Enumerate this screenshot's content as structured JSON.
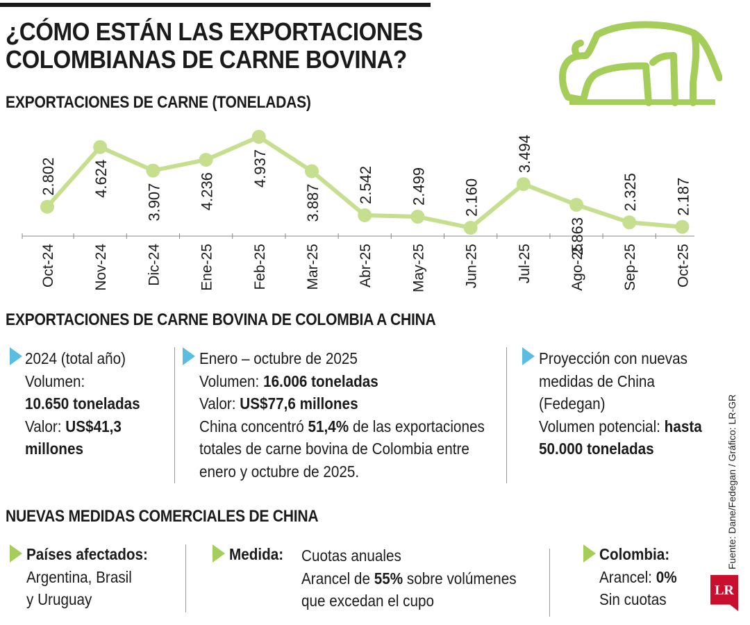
{
  "header": {
    "title_line1": "¿CÓMO ESTÁN LAS EXPORTACIONES",
    "title_line2": "COLOMBIANAS DE CARNE BOVINA?"
  },
  "colors": {
    "accent_green": "#a4cd5a",
    "accent_blue": "#5bbde0",
    "brand_red": "#c8102e"
  },
  "icons": {
    "cow": "cow-icon",
    "logo": "lr-logo"
  },
  "chart_data": {
    "type": "line",
    "title": "EXPORTACIONES DE CARNE (TONELADAS)",
    "categories": [
      "Oct-24",
      "Nov-24",
      "Dic-24",
      "Ene-25",
      "Feb-25",
      "Mar-25",
      "Abr-25",
      "May-25",
      "Jun-25",
      "Jul-25",
      "Ago-25",
      "Sep-25",
      "Oct-25"
    ],
    "values": [
      2802,
      4624,
      3907,
      4236,
      4937,
      3887,
      2542,
      2499,
      2160,
      3494,
      2863,
      2325,
      2187
    ],
    "labels": [
      "2.802",
      "4.624",
      "3.907",
      "4.236",
      "4.937",
      "3.887",
      "2.542",
      "2.499",
      "2.160",
      "3.494",
      "2.863",
      "2.325",
      "2.187"
    ],
    "ylim": [
      2000,
      5200
    ],
    "xlabel": "",
    "ylabel": "",
    "grid": false
  },
  "china_exports": {
    "title": "EXPORTACIONES DE CARNE BOVINA DE COLOMBIA A CHINA",
    "col1": {
      "heading": "2024 (total año)",
      "volume_label": "Volumen:",
      "volume_value": "10.650 toneladas",
      "value_label": "Valor:",
      "value_value_a": "US$41,3",
      "value_value_b": "millones"
    },
    "col2": {
      "heading": "Enero – octubre de 2025",
      "volume_label": "Volumen:",
      "volume_value": "16.006 toneladas",
      "value_label": "Valor:",
      "value_value": "US$77,6 millones",
      "share_pre": "China concentró",
      "share_value": "51,4%",
      "share_post": "de las exportaciones",
      "share_line2": "totales de carne bovina de Colombia entre",
      "share_line3": "enero y octubre de 2025."
    },
    "col3": {
      "line1": "Proyección con nuevas",
      "line2": "medidas de China",
      "line3": "(Fedegan)",
      "volume_label": "Volumen potencial:",
      "volume_pre": "hasta",
      "volume_value": "50.000 toneladas"
    }
  },
  "measures": {
    "title": "NUEVAS MEDIDAS COMERCIALES DE CHINA",
    "col1": {
      "heading": "Países afectados:",
      "line1": "Argentina, Brasil",
      "line2": "y Uruguay"
    },
    "col2": {
      "heading": "Medida:",
      "line1": "Cuotas anuales",
      "line2_pre": "Arancel de",
      "line2_value": "55%",
      "line2_post": "sobre volúmenes",
      "line3": "que excedan el cupo"
    },
    "col3": {
      "heading": "Colombia:",
      "tariff_label": "Arancel:",
      "tariff_value": "0%",
      "line2": "Sin cuotas"
    }
  },
  "footer": {
    "source": "Fuente: Dane/Fedegan / Gráfico: LR-GR",
    "logo_text": "LR"
  }
}
